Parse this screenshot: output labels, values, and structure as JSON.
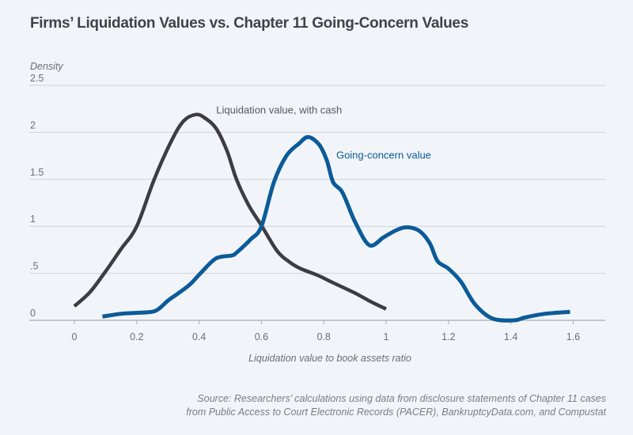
{
  "chart_data": {
    "type": "line",
    "title": "Firms’ Liquidation Values vs. Chapter 11 Going-Concern Values",
    "ylabel": "Density",
    "xlabel": "Liquidation value to book assets ratio",
    "xlim": [
      -0.14,
      1.7
    ],
    "ylim": [
      0,
      2.5
    ],
    "xticks": [
      0,
      0.2,
      0.4,
      0.6,
      0.8,
      1,
      1.2,
      1.4,
      1.6
    ],
    "xtick_labels": [
      "0",
      "0.2",
      "0.4",
      "0.6",
      "0.8",
      "1",
      "1.2",
      "1.4",
      "1.6"
    ],
    "yticks": [
      0,
      0.5,
      1,
      1.5,
      2,
      2.5
    ],
    "ytick_labels": [
      "0",
      ".5",
      "1",
      "1.5",
      "2",
      "2.5"
    ],
    "grid": "horizontal",
    "series": [
      {
        "name": "Liquidation value, with cash",
        "color": "#3c3d41",
        "label_anchor": [
          0.455,
          2.2
        ],
        "x": [
          0,
          0.05,
          0.1,
          0.15,
          0.2,
          0.256,
          0.31,
          0.35,
          0.39,
          0.42,
          0.455,
          0.49,
          0.52,
          0.56,
          0.6,
          0.65,
          0.69,
          0.726,
          0.78,
          0.83,
          0.9,
          0.95,
          1.0
        ],
        "y": [
          0.15,
          0.3,
          0.52,
          0.76,
          1.0,
          1.5,
          1.9,
          2.12,
          2.19,
          2.15,
          2.04,
          1.8,
          1.5,
          1.22,
          1.01,
          0.74,
          0.62,
          0.55,
          0.48,
          0.4,
          0.29,
          0.2,
          0.12
        ]
      },
      {
        "name": "Going-concern value",
        "color": "#0b5b98",
        "label_anchor": [
          0.84,
          1.72
        ],
        "x": [
          0.09,
          0.15,
          0.2,
          0.26,
          0.3,
          0.33,
          0.37,
          0.41,
          0.455,
          0.505,
          0.52,
          0.565,
          0.6,
          0.64,
          0.68,
          0.72,
          0.75,
          0.785,
          0.81,
          0.83,
          0.86,
          0.9,
          0.946,
          0.99,
          1.005,
          1.04,
          1.07,
          1.107,
          1.14,
          1.165,
          1.2,
          1.24,
          1.285,
          1.34,
          1.41,
          1.445,
          1.51,
          1.59
        ],
        "y": [
          0.04,
          0.07,
          0.08,
          0.1,
          0.21,
          0.28,
          0.38,
          0.52,
          0.66,
          0.69,
          0.72,
          0.86,
          1.0,
          1.47,
          1.75,
          1.88,
          1.95,
          1.87,
          1.7,
          1.47,
          1.36,
          1.05,
          0.8,
          0.88,
          0.91,
          0.97,
          0.99,
          0.95,
          0.82,
          0.63,
          0.55,
          0.41,
          0.17,
          0.02,
          0.0,
          0.03,
          0.07,
          0.09
        ]
      }
    ],
    "source_lines": [
      "Source: Researchers’ calculations using data from disclosure statements of Chapter 11 cases",
      "from Public Access to Court Electronic Records (PACER), BankruptcyData.com, and Compustat"
    ]
  }
}
